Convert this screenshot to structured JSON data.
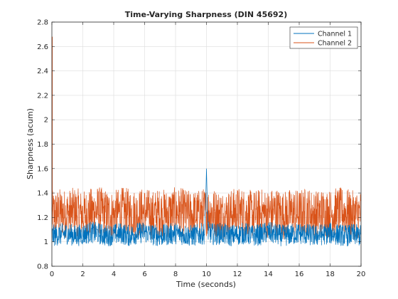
{
  "chart_data": {
    "type": "line",
    "title": "Time-Varying Sharpness (DIN 45692)",
    "xlabel": "Time (seconds)",
    "ylabel": "Sharpness (acum)",
    "xlim": [
      0,
      20
    ],
    "ylim": [
      0.8,
      2.8
    ],
    "xticks": [
      "0",
      "2",
      "4",
      "6",
      "8",
      "10",
      "12",
      "14",
      "16",
      "18",
      "20"
    ],
    "yticks": [
      "0.8",
      "1",
      "1.2",
      "1.4",
      "1.6",
      "1.8",
      "2",
      "2.2",
      "2.4",
      "2.6",
      "2.8"
    ],
    "grid": true,
    "legend_position": "top-right",
    "series": [
      {
        "name": "Channel 1",
        "color": "#0072BD",
        "x": [
          0,
          0.5,
          1,
          1.5,
          2,
          2.5,
          3,
          3.5,
          4,
          4.5,
          5,
          5.5,
          6,
          6.5,
          7,
          7.5,
          8,
          8.5,
          9,
          9.5,
          9.9,
          10,
          10.1,
          10.5,
          11,
          11.5,
          12,
          12.5,
          13,
          13.5,
          14,
          14.5,
          15,
          15.5,
          16,
          16.5,
          17,
          17.5,
          18,
          18.5,
          19,
          19.5,
          20
        ],
        "y": [
          1.05,
          1.06,
          1.07,
          1.05,
          1.06,
          1.08,
          1.07,
          1.05,
          1.06,
          1.07,
          1.05,
          1.07,
          1.08,
          1.06,
          1.05,
          1.06,
          1.07,
          1.06,
          1.05,
          1.06,
          1.07,
          1.6,
          1.08,
          1.06,
          1.07,
          1.05,
          1.06,
          1.07,
          1.05,
          1.06,
          1.08,
          1.06,
          1.05,
          1.06,
          1.07,
          1.06,
          1.05,
          1.06,
          1.07,
          1.06,
          1.05,
          1.06,
          1.05
        ]
      },
      {
        "name": "Channel 2",
        "color": "#D95319",
        "x": [
          0,
          0.5,
          1,
          1.5,
          2,
          2.5,
          3,
          3.5,
          4,
          4.5,
          5,
          5.5,
          6,
          6.5,
          7,
          7.5,
          8,
          8.5,
          9,
          9.5,
          10,
          10.5,
          11,
          11.5,
          12,
          12.5,
          13,
          13.5,
          14,
          14.5,
          15,
          15.5,
          16,
          16.5,
          17,
          17.5,
          18,
          18.5,
          19,
          19.5,
          20
        ],
        "y": [
          1.22,
          1.24,
          1.23,
          1.25,
          1.22,
          1.24,
          1.26,
          1.23,
          1.22,
          1.25,
          1.24,
          1.23,
          1.25,
          1.22,
          1.24,
          1.23,
          1.25,
          1.24,
          1.22,
          1.23,
          1.25,
          1.24,
          1.22,
          1.23,
          1.25,
          1.24,
          1.22,
          1.24,
          1.23,
          1.25,
          1.22,
          1.24,
          1.23,
          1.25,
          1.22,
          1.24,
          1.23,
          1.25,
          1.24,
          1.22,
          1.23
        ]
      }
    ]
  }
}
